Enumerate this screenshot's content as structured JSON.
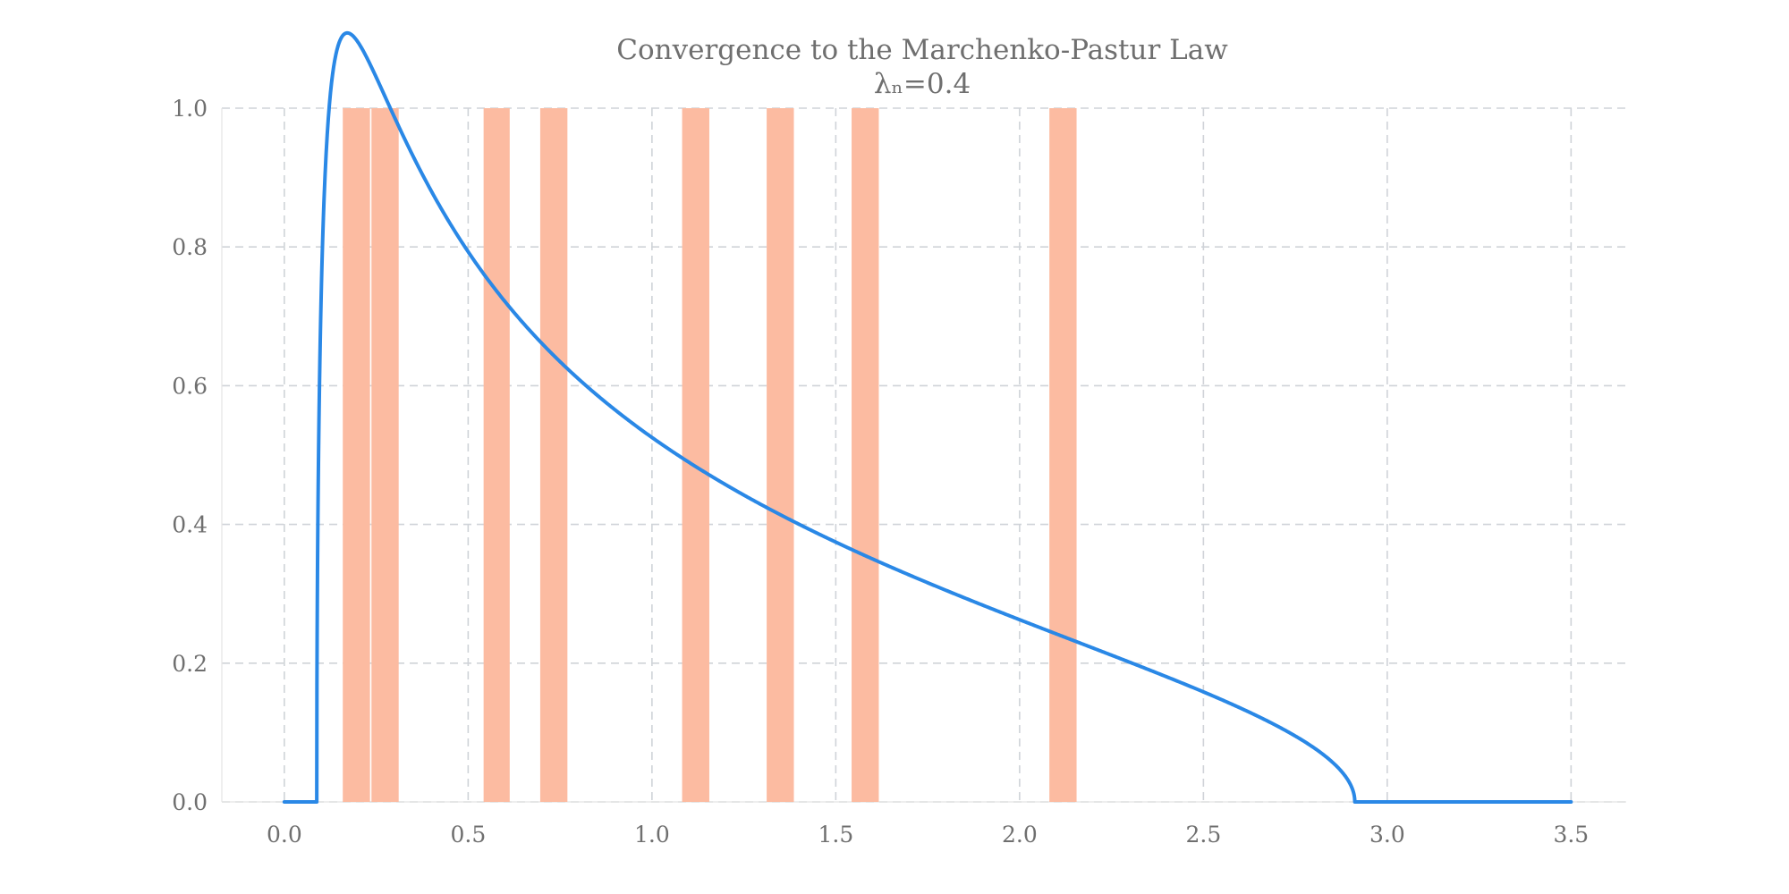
{
  "chart_data": {
    "type": "bar",
    "title": "Convergence to the Marchenko-Pastur Law",
    "subtitle": "λₙ=0.4",
    "xlabel": "",
    "ylabel": "",
    "xlim": [
      -0.17,
      3.65
    ],
    "ylim": [
      0.0,
      1.0
    ],
    "xticks": [
      0.0,
      0.5,
      1.0,
      1.5,
      2.0,
      2.5,
      3.0,
      3.5
    ],
    "xtick_labels": [
      "0.0",
      "0.5",
      "1.0",
      "1.5",
      "2.0",
      "2.5",
      "3.0",
      "3.5"
    ],
    "yticks": [
      0.0,
      0.2,
      0.4,
      0.6,
      0.8,
      1.0
    ],
    "ytick_labels": [
      "0.0",
      "0.2",
      "0.4",
      "0.6",
      "0.8",
      "1.0"
    ],
    "grid": true,
    "colors": {
      "histogram": "#fcbba1",
      "density": "#2a88e6",
      "grid": "#cfd3d8",
      "text": "#6f6f6f"
    },
    "histogram_bins": [
      {
        "x0": 0.159,
        "x1": 0.233,
        "height": 1.0
      },
      {
        "x0": 0.237,
        "x1": 0.311,
        "height": 1.0
      },
      {
        "x0": 0.542,
        "x1": 0.613,
        "height": 1.0
      },
      {
        "x0": 0.696,
        "x1": 0.77,
        "height": 1.0
      },
      {
        "x0": 1.082,
        "x1": 1.156,
        "height": 1.0
      },
      {
        "x0": 1.312,
        "x1": 1.386,
        "height": 1.0
      },
      {
        "x0": 1.543,
        "x1": 1.617,
        "height": 1.0
      },
      {
        "x0": 2.081,
        "x1": 2.155,
        "height": 1.0
      }
    ],
    "series": [
      {
        "type": "line",
        "lambda": 0.4,
        "sigma2": 1.0,
        "x_range": [
          0.0,
          3.5
        ],
        "support": [
          0.0882,
          2.9118
        ]
      }
    ]
  }
}
